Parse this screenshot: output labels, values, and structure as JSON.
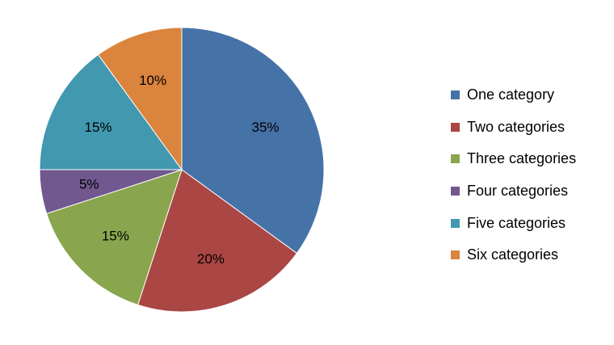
{
  "chart_data": {
    "type": "pie",
    "categories": [
      "One category",
      "Two categories",
      "Three categories",
      "Four categories",
      "Five categories",
      "Six categories"
    ],
    "values": [
      35,
      20,
      15,
      5,
      15,
      10
    ],
    "value_labels": [
      "35%",
      "20%",
      "15%",
      "5%",
      "15%",
      "10%"
    ],
    "colors": [
      "#4572A7",
      "#AA4643",
      "#89A54E",
      "#71588F",
      "#4198AF",
      "#DB843D"
    ],
    "start_angle": "12 o'clock",
    "direction": "clockwise",
    "legend": "right"
  }
}
